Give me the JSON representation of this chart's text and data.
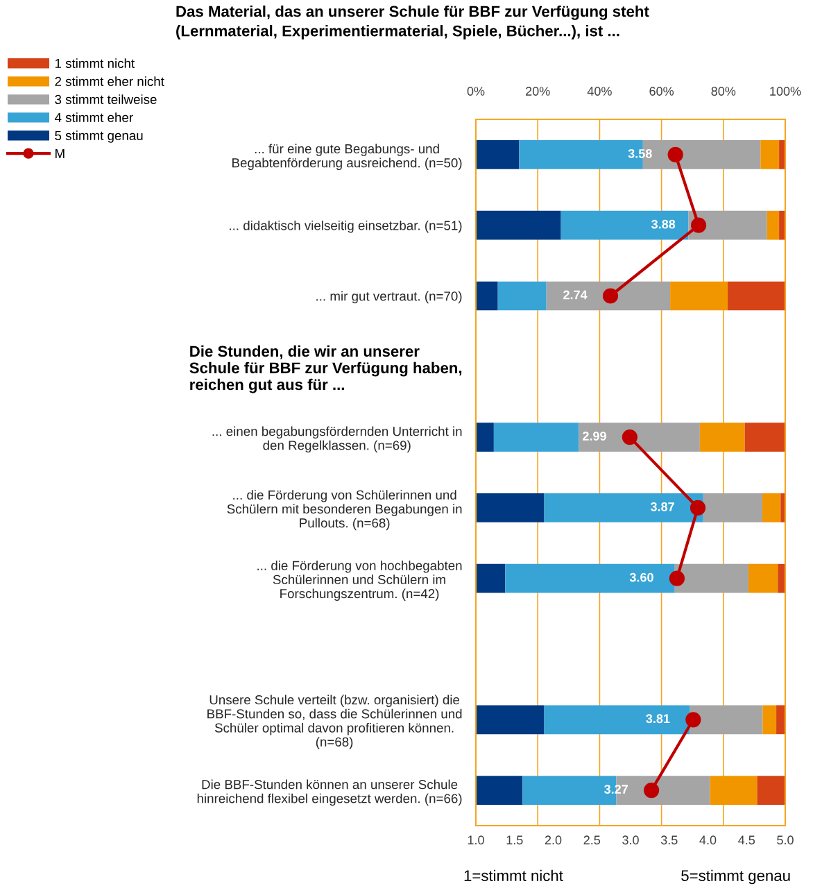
{
  "chart_data": {
    "type": "bar",
    "orientation": "horizontal",
    "stacked": true,
    "title": "Das Material, das an unserer Schule für BBF zur Verfügung steht\n(Lernmaterial, Experimentiermaterial, Spiele, Bücher...), ist ...",
    "categories": [
      "... für eine gute Begabungs- und\nBegabtenförderung ausreichend. (n=50)",
      "... didaktisch vielseitig einsetzbar. (n=51)",
      "... mir gut vertraut. (n=70)",
      "Die Stunden, die wir an unserer\nSchule für BBF zur Verfügung haben,\nreichen gut aus für ...",
      "... einen begabungsfördernden Unterricht in\nden Regelklassen. (n=69)",
      "... die Förderung von Schülerinnen und\nSchülern mit besonderen Begabungen in\nPullouts. (n=68)",
      "... die Förderung von hochbegabten\nSchülerinnen und Schülern im\nForschungszentrum. (n=42)",
      null,
      "Unsere Schule verteilt (bzw. organisiert) die\nBBF-Stunden so, dass die Schülerinnen und\nSchüler optimal davon profitieren können.\n(n=68)",
      "Die BBF-Stunden können an unserer Schule\nhinreichend flexibel eingesetzt werden. (n=66)"
    ],
    "series": [
      {
        "name": "5 stimmt genau",
        "color": "#003882",
        "values": [
          14.0,
          27.5,
          7.1,
          null,
          5.8,
          22.1,
          9.5,
          null,
          22.1,
          15.1
        ]
      },
      {
        "name": "4 stimmt eher",
        "color": "#38a4d6",
        "values": [
          40.0,
          41.2,
          15.7,
          null,
          27.5,
          51.4,
          54.8,
          null,
          47.1,
          30.3
        ]
      },
      {
        "name": "3 stimmt teilweise",
        "color": "#a5a5a5",
        "values": [
          38.0,
          25.4,
          40.0,
          null,
          39.1,
          19.1,
          23.8,
          null,
          23.5,
          30.3
        ]
      },
      {
        "name": "2 stimmt eher nicht",
        "color": "#f29600",
        "values": [
          6.0,
          3.9,
          18.6,
          null,
          14.5,
          5.9,
          9.5,
          null,
          4.4,
          15.2
        ]
      },
      {
        "name": "1 stimmt nicht",
        "color": "#d54317",
        "values": [
          2.0,
          2.0,
          18.6,
          null,
          13.0,
          1.5,
          2.4,
          null,
          2.9,
          9.1
        ]
      },
      {
        "name": "M",
        "type": "line",
        "axis": "x2",
        "color": "#c00000",
        "marker": "circle",
        "values": [
          3.58,
          3.88,
          2.74,
          null,
          2.99,
          3.87,
          3.6,
          null,
          3.81,
          3.27
        ],
        "value_labels": [
          "3.58",
          "3.88",
          "2.74",
          null,
          "2.99",
          "3.87",
          "3.60",
          null,
          "3.81",
          "3.27"
        ]
      }
    ],
    "xlim": [
      0,
      100
    ],
    "xticks": [
      {
        "value": 0,
        "label": "0%"
      },
      {
        "value": 20,
        "label": "20%"
      },
      {
        "value": 40,
        "label": "40%"
      },
      {
        "value": 60,
        "label": "60%"
      },
      {
        "value": 80,
        "label": "80%"
      },
      {
        "value": 100,
        "label": "100%"
      }
    ],
    "x2lim": [
      1,
      5
    ],
    "x2ticks": [
      {
        "value": 1,
        "label": "1.0"
      },
      {
        "value": 1.5,
        "label": "1.5"
      },
      {
        "value": 2,
        "label": "2.0"
      },
      {
        "value": 2.5,
        "label": "2.5"
      },
      {
        "value": 3,
        "label": "3.0"
      },
      {
        "value": 3.5,
        "label": "3.5"
      },
      {
        "value": 4,
        "label": "4.0"
      },
      {
        "value": 4.5,
        "label": "4.5"
      },
      {
        "value": 5,
        "label": "5.0"
      }
    ],
    "grid": "x",
    "legend": "top left",
    "annotations": [
      "1=stimmt nicht",
      "5=stimmt genau"
    ]
  }
}
